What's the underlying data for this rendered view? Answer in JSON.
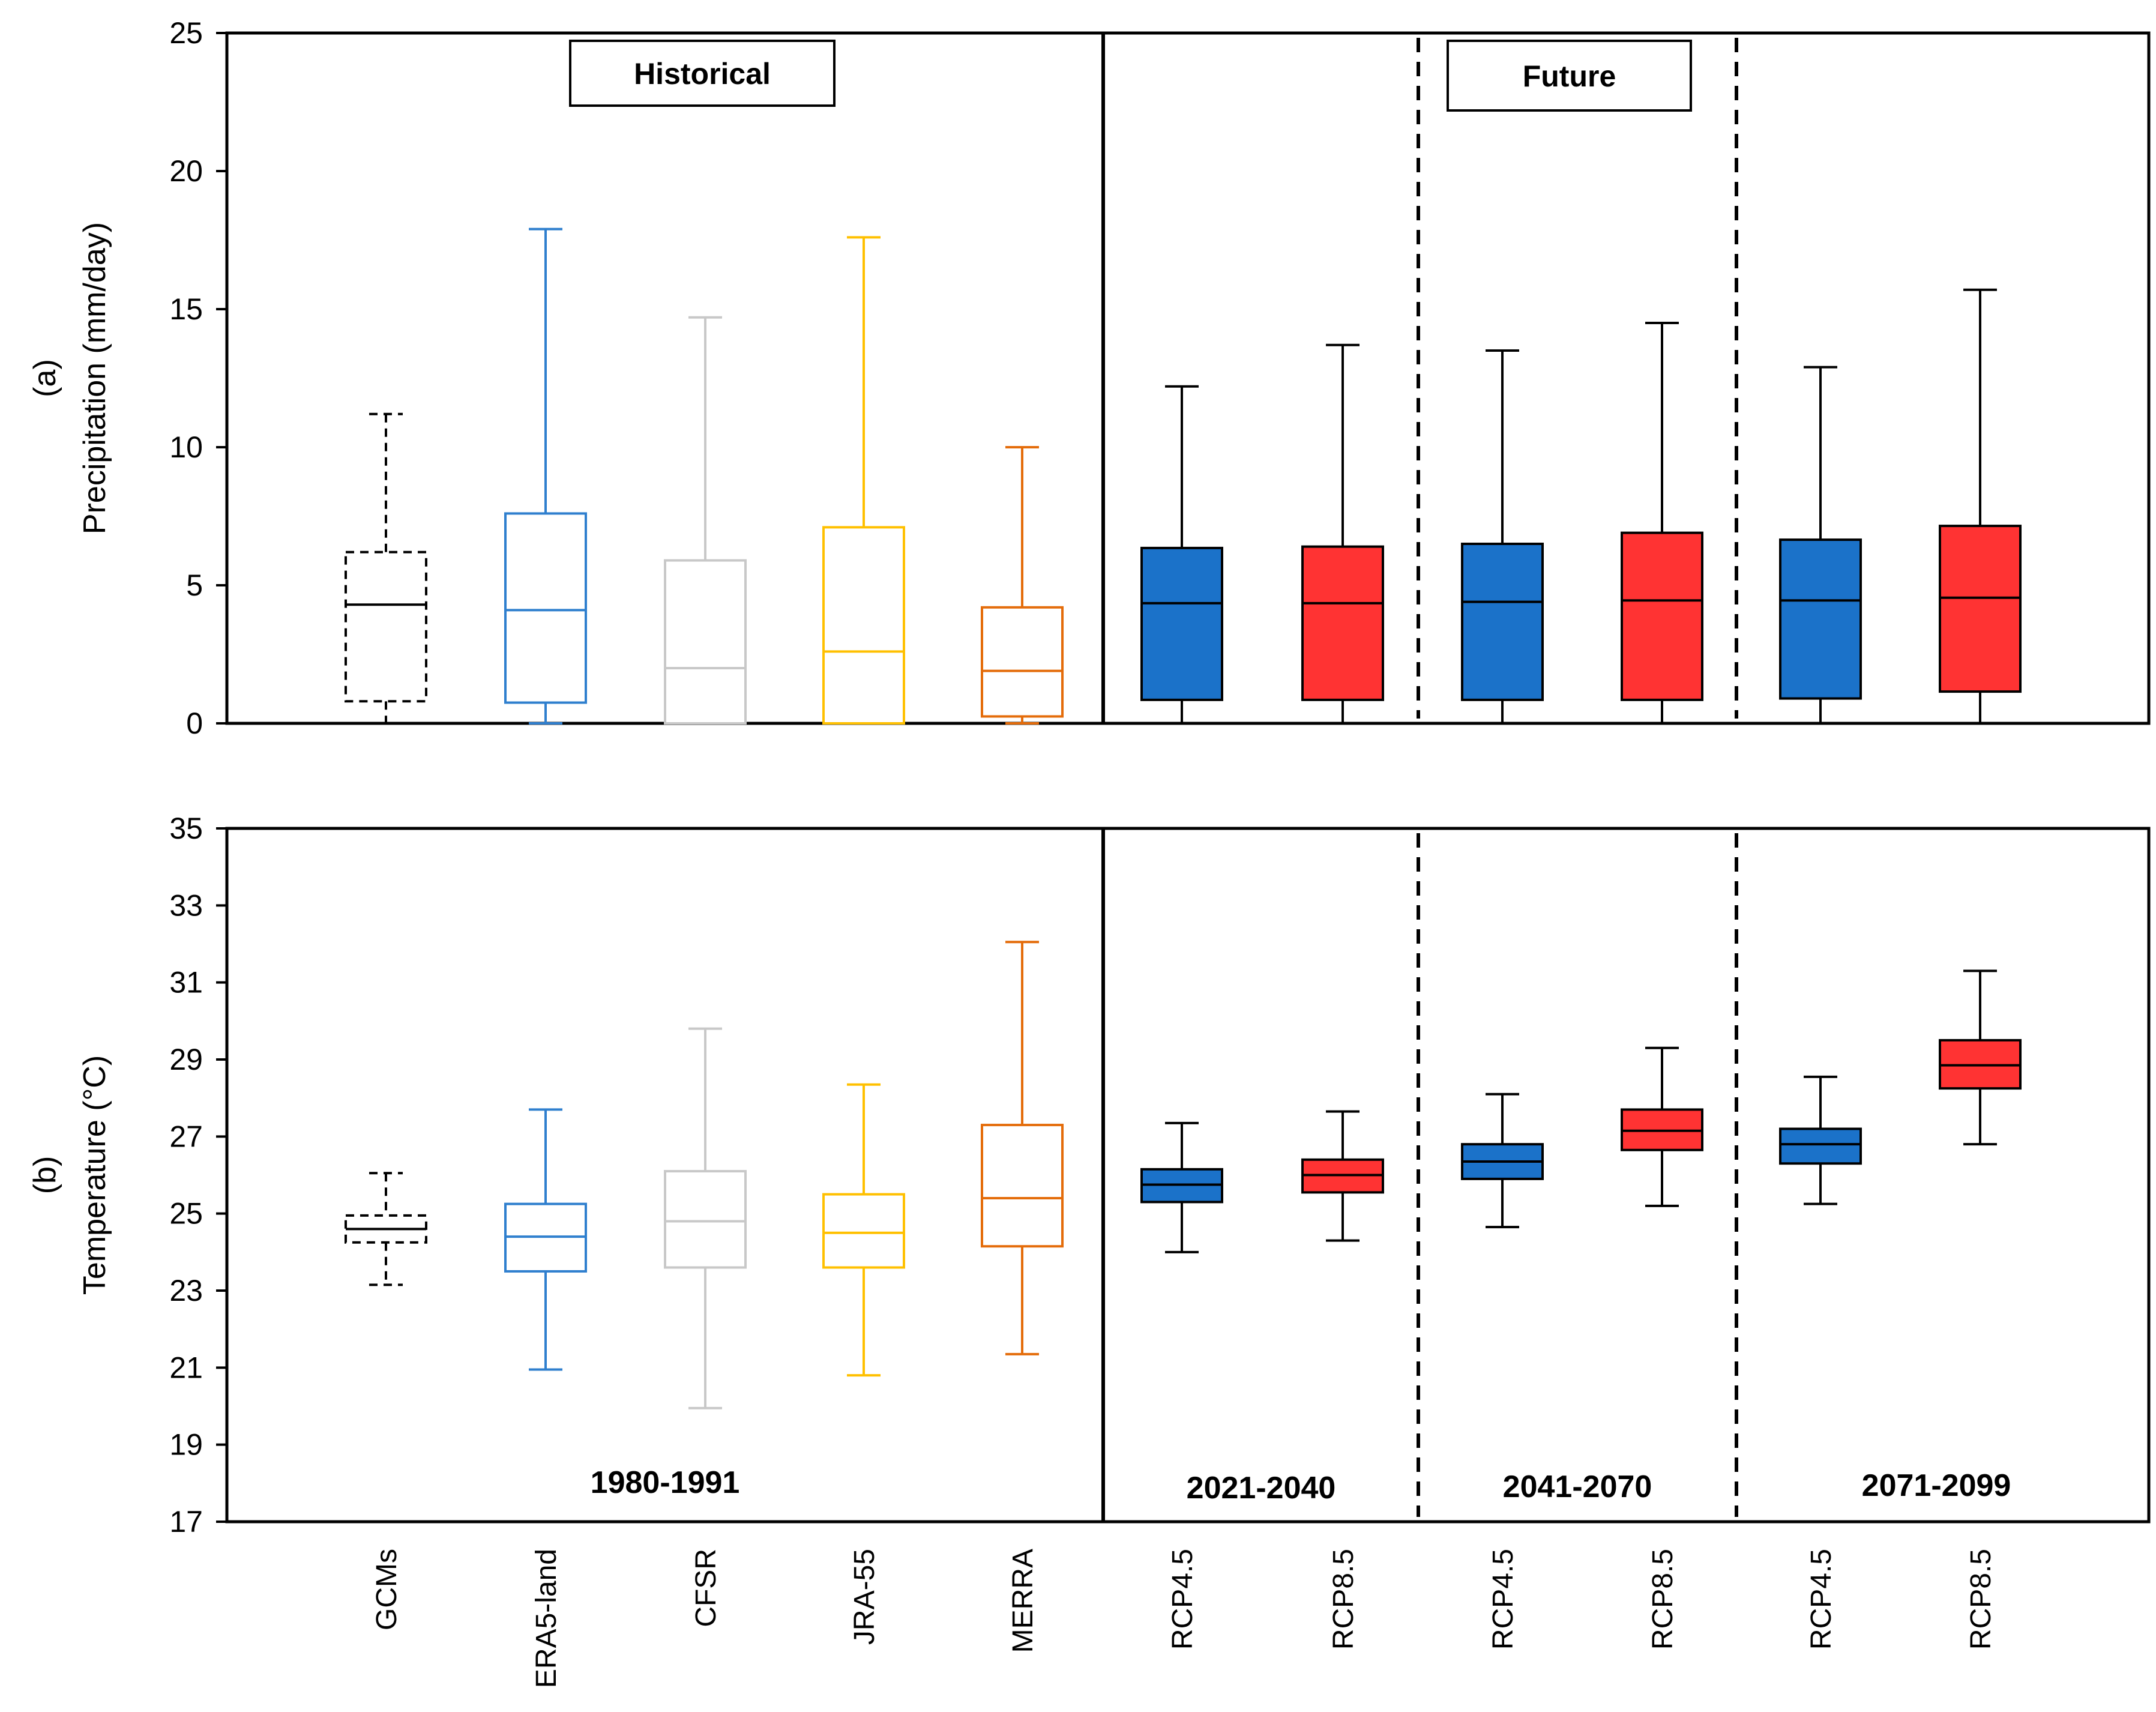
{
  "chart_data": [
    {
      "type": "box",
      "panel_label": "(a)",
      "ylabel": "Precipitation (mm/day)",
      "ylim": [
        0,
        25
      ],
      "yticks": [
        0,
        5,
        10,
        15,
        20,
        25
      ],
      "period_boxes": [
        "Historical",
        "Future"
      ],
      "boxes": [
        {
          "category": "GCMs",
          "color": "#000000",
          "dashed": true,
          "filled": false,
          "min": 0,
          "q1": 0.8,
          "median": 4.3,
          "q3": 6.2,
          "max": 11.2
        },
        {
          "category": "ERA5-land",
          "color": "#2f7fce",
          "dashed": false,
          "filled": false,
          "min": 0,
          "q1": 0.75,
          "median": 4.1,
          "q3": 7.6,
          "max": 17.9
        },
        {
          "category": "CFSR",
          "color": "#c8c8c8",
          "dashed": false,
          "filled": false,
          "min": 0,
          "q1": 0,
          "median": 2.0,
          "q3": 5.9,
          "max": 14.7
        },
        {
          "category": "JRA-55",
          "color": "#ffc000",
          "dashed": false,
          "filled": false,
          "min": 0,
          "q1": 0,
          "median": 2.6,
          "q3": 7.1,
          "max": 17.6
        },
        {
          "category": "MERRA",
          "color": "#e46c0a",
          "dashed": false,
          "filled": false,
          "min": 0,
          "q1": 0.25,
          "median": 1.9,
          "q3": 4.2,
          "max": 10.0
        },
        {
          "category": "RCP4.5",
          "color": "#1b72c9",
          "dashed": false,
          "filled": true,
          "min": 0,
          "q1": 0.85,
          "median": 4.35,
          "q3": 6.35,
          "max": 12.2
        },
        {
          "category": "RCP8.5",
          "color": "#ff3333",
          "dashed": false,
          "filled": true,
          "min": 0,
          "q1": 0.85,
          "median": 4.35,
          "q3": 6.4,
          "max": 13.7
        },
        {
          "category": "RCP4.5",
          "color": "#1b72c9",
          "dashed": false,
          "filled": true,
          "min": 0,
          "q1": 0.85,
          "median": 4.4,
          "q3": 6.5,
          "max": 13.5
        },
        {
          "category": "RCP8.5",
          "color": "#ff3333",
          "dashed": false,
          "filled": true,
          "min": 0,
          "q1": 0.85,
          "median": 4.45,
          "q3": 6.9,
          "max": 14.5
        },
        {
          "category": "RCP4.5",
          "color": "#1b72c9",
          "dashed": false,
          "filled": true,
          "min": 0,
          "q1": 0.9,
          "median": 4.45,
          "q3": 6.65,
          "max": 12.9
        },
        {
          "category": "RCP8.5",
          "color": "#ff3333",
          "dashed": false,
          "filled": true,
          "min": 0,
          "q1": 1.15,
          "median": 4.55,
          "q3": 7.15,
          "max": 15.7
        }
      ]
    },
    {
      "type": "box",
      "panel_label": "(b)",
      "ylabel": "Temperature (°C)",
      "ylim": [
        17,
        35
      ],
      "yticks": [
        17,
        19,
        21,
        23,
        25,
        27,
        29,
        31,
        33,
        35
      ],
      "period_labels": [
        "1980-1991",
        "2021-2040",
        "2041-2070",
        "2071-2099"
      ],
      "boxes": [
        {
          "category": "GCMs",
          "color": "#000000",
          "dashed": true,
          "filled": false,
          "min": 23.15,
          "q1": 24.25,
          "median": 24.6,
          "q3": 24.95,
          "max": 26.05
        },
        {
          "category": "ERA5-land",
          "color": "#2f7fce",
          "dashed": false,
          "filled": false,
          "min": 20.95,
          "q1": 23.5,
          "median": 24.4,
          "q3": 25.25,
          "max": 27.7
        },
        {
          "category": "CFSR",
          "color": "#c8c8c8",
          "dashed": false,
          "filled": false,
          "min": 19.95,
          "q1": 23.6,
          "median": 24.8,
          "q3": 26.1,
          "max": 29.8
        },
        {
          "category": "JRA-55",
          "color": "#ffc000",
          "dashed": false,
          "filled": false,
          "min": 20.8,
          "q1": 23.6,
          "median": 24.5,
          "q3": 25.5,
          "max": 28.35
        },
        {
          "category": "MERRA",
          "color": "#e46c0a",
          "dashed": false,
          "filled": false,
          "min": 21.35,
          "q1": 24.15,
          "median": 25.4,
          "q3": 27.3,
          "max": 32.05
        },
        {
          "category": "RCP4.5",
          "color": "#1b72c9",
          "dashed": false,
          "filled": true,
          "min": 24.0,
          "q1": 25.3,
          "median": 25.75,
          "q3": 26.15,
          "max": 27.35
        },
        {
          "category": "RCP8.5",
          "color": "#ff3333",
          "dashed": false,
          "filled": true,
          "min": 24.3,
          "q1": 25.55,
          "median": 26.0,
          "q3": 26.4,
          "max": 27.65
        },
        {
          "category": "RCP4.5",
          "color": "#1b72c9",
          "dashed": false,
          "filled": true,
          "min": 24.65,
          "q1": 25.9,
          "median": 26.35,
          "q3": 26.8,
          "max": 28.1
        },
        {
          "category": "RCP8.5",
          "color": "#ff3333",
          "dashed": false,
          "filled": true,
          "min": 25.2,
          "q1": 26.65,
          "median": 27.15,
          "q3": 27.7,
          "max": 29.3
        },
        {
          "category": "RCP4.5",
          "color": "#1b72c9",
          "dashed": false,
          "filled": true,
          "min": 25.25,
          "q1": 26.3,
          "median": 26.8,
          "q3": 27.2,
          "max": 28.55
        },
        {
          "category": "RCP8.5",
          "color": "#ff3333",
          "dashed": false,
          "filled": true,
          "min": 26.8,
          "q1": 28.25,
          "median": 28.85,
          "q3": 29.5,
          "max": 31.3
        }
      ]
    }
  ],
  "x_categories": [
    "GCMs",
    "ERA5-land",
    "CFSR",
    "JRA-55",
    "MERRA",
    "RCP4.5",
    "RCP8.5",
    "RCP4.5",
    "RCP8.5",
    "RCP4.5",
    "RCP8.5"
  ]
}
